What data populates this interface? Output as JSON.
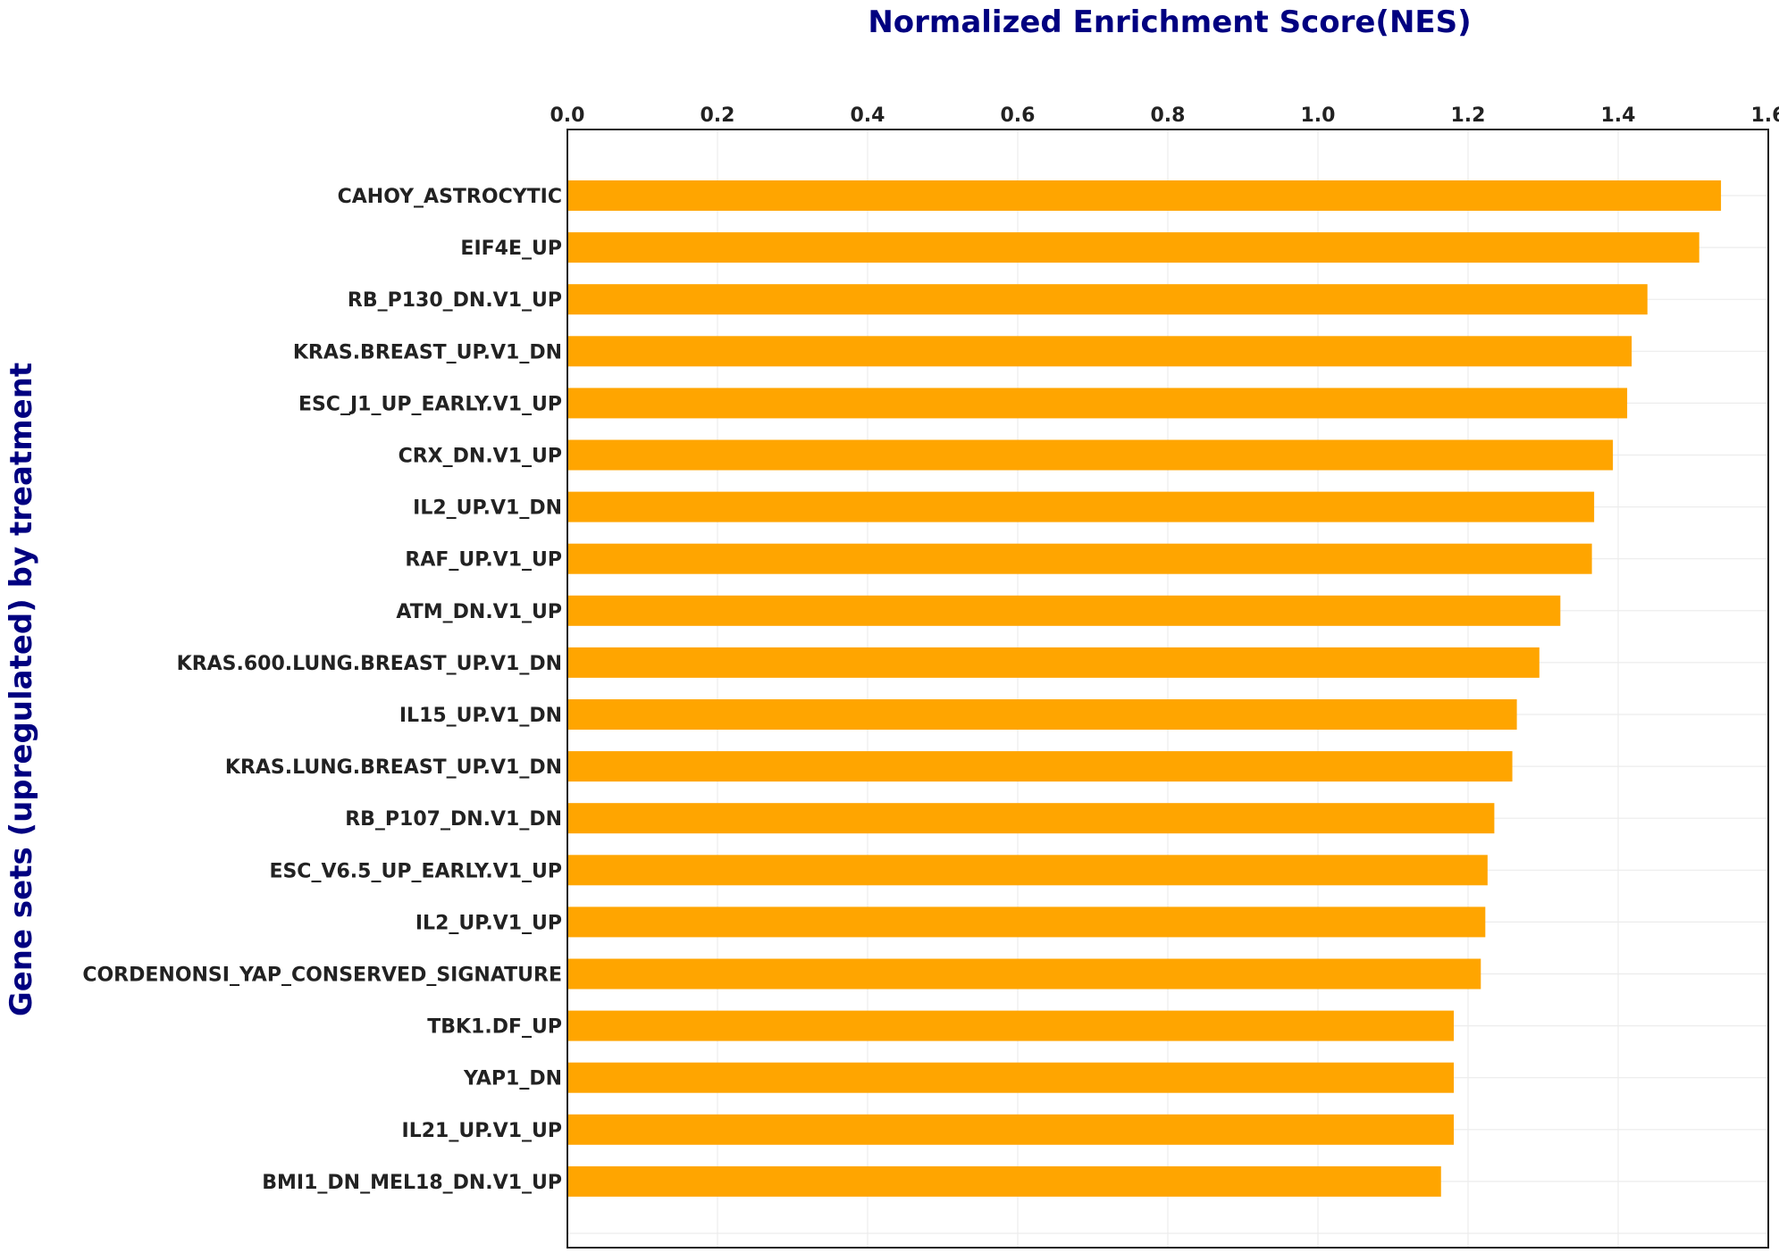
{
  "chart_data": {
    "type": "bar",
    "orientation": "horizontal",
    "title": "Normalized Enrichment Score(NES)",
    "ylabel": "Gene sets (upregulated) by treatment",
    "xlabel": "",
    "xlim": [
      0,
      1.6
    ],
    "x_ticks": [
      "0.0",
      "0.2",
      "0.4",
      "0.6",
      "0.8",
      "1.0",
      "1.2",
      "1.4",
      "1.6"
    ],
    "x_axis_position": "top",
    "grid": true,
    "bar_color": "#FFA500",
    "title_color": "#000080",
    "categories": [
      "CAHOY_ASTROCYTIC",
      "EIF4E_UP",
      "RB_P130_DN.V1_UP",
      "KRAS.BREAST_UP.V1_DN",
      "ESC_J1_UP_EARLY.V1_UP",
      "CRX_DN.V1_UP",
      "IL2_UP.V1_DN",
      "RAF_UP.V1_UP",
      "ATM_DN.V1_UP",
      "KRAS.600.LUNG.BREAST_UP.V1_DN",
      "IL15_UP.V1_DN",
      "KRAS.LUNG.BREAST_UP.V1_DN",
      "RB_P107_DN.V1_DN",
      "ESC_V6.5_UP_EARLY.V1_UP",
      "IL2_UP.V1_UP",
      "CORDENONSI_YAP_CONSERVED_SIGNATURE",
      "TBK1.DF_UP",
      "YAP1_DN",
      "IL21_UP.V1_UP",
      "BMI1_DN_MEL18_DN.V1_UP"
    ],
    "values": [
      1.537,
      1.508,
      1.439,
      1.418,
      1.412,
      1.393,
      1.368,
      1.365,
      1.323,
      1.295,
      1.265,
      1.259,
      1.235,
      1.226,
      1.223,
      1.217,
      1.181,
      1.181,
      1.181,
      1.164
    ]
  }
}
